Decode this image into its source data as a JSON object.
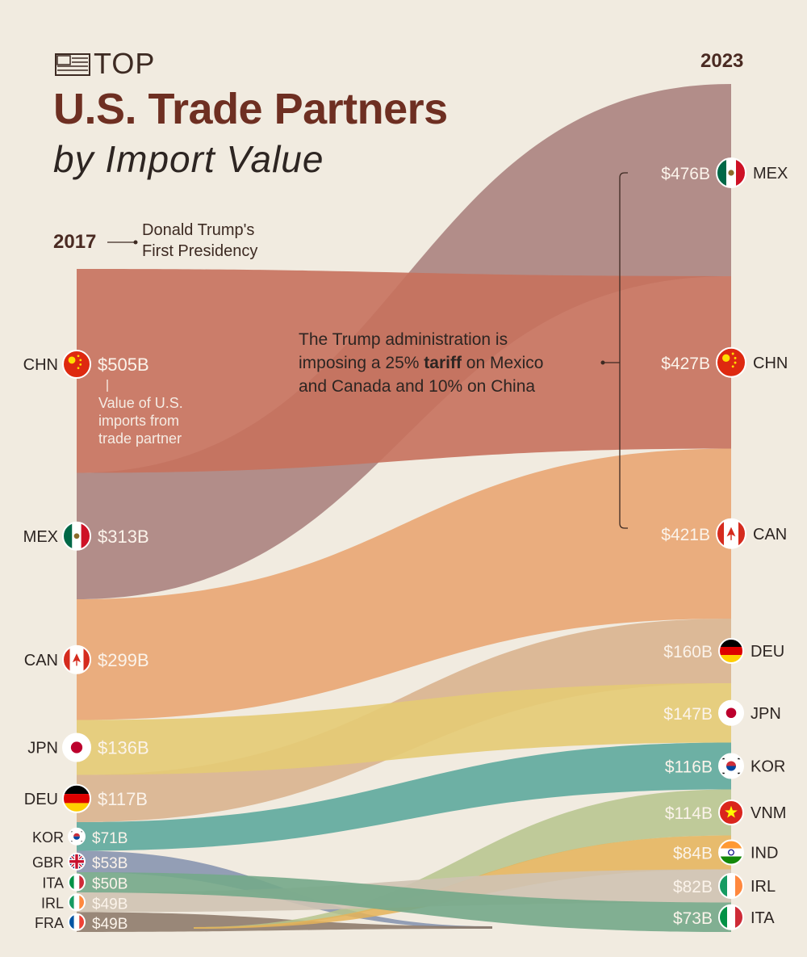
{
  "header": {
    "top_word": "TOP",
    "title": "U.S. Trade Partners",
    "subtitle": "by Import Value"
  },
  "annotations": {
    "year_start": "2017",
    "year_end": "2023",
    "presidency_line1": "Donald Trump's",
    "presidency_line2": "First Presidency",
    "tariff_line1": "The Trump administration is",
    "tariff_line2_pre": "imposing a 25% ",
    "tariff_line2_bold": "tariff",
    "tariff_line2_post": " on Mexico",
    "tariff_line3": "and Canada and 10% on China",
    "value_note_line1": "Value of U.S.",
    "value_note_line2": "imports from",
    "value_note_line3": "trade partner"
  },
  "colors": {
    "background": "#f1ebe0",
    "CHN": "#c7715d",
    "MEX": "#ab8380",
    "CAN": "#e9a673",
    "JPN": "#e4cb74",
    "DEU": "#d9b48f",
    "KOR": "#5eaa9d",
    "GBR": "#8391ad",
    "ITA": "#74a98a",
    "IRL": "#cfc3b3",
    "FRA": "#8a7565",
    "VNM": "#b6c48c",
    "IND": "#e5b358"
  },
  "chart_data": {
    "type": "sankey",
    "title": "U.S. Trade Partners by Import Value",
    "unit": "$B",
    "left_year": "2017",
    "right_year": "2023",
    "left": [
      {
        "code": "CHN",
        "value": 505,
        "label": "$505B",
        "flag": "china-flag-icon"
      },
      {
        "code": "MEX",
        "value": 313,
        "label": "$313B",
        "flag": "mexico-flag-icon"
      },
      {
        "code": "CAN",
        "value": 299,
        "label": "$299B",
        "flag": "canada-flag-icon"
      },
      {
        "code": "JPN",
        "value": 136,
        "label": "$136B",
        "flag": "japan-flag-icon"
      },
      {
        "code": "DEU",
        "value": 117,
        "label": "$117B",
        "flag": "germany-flag-icon"
      },
      {
        "code": "KOR",
        "value": 71,
        "label": "$71B",
        "flag": "korea-flag-icon"
      },
      {
        "code": "GBR",
        "value": 53,
        "label": "$53B",
        "flag": "uk-flag-icon"
      },
      {
        "code": "ITA",
        "value": 50,
        "label": "$50B",
        "flag": "italy-flag-icon"
      },
      {
        "code": "IRL",
        "value": 49,
        "label": "$49B",
        "flag": "ireland-flag-icon"
      },
      {
        "code": "FRA",
        "value": 49,
        "label": "$49B",
        "flag": "france-flag-icon"
      }
    ],
    "right": [
      {
        "code": "MEX",
        "value": 476,
        "label": "$476B",
        "flag": "mexico-flag-icon"
      },
      {
        "code": "CHN",
        "value": 427,
        "label": "$427B",
        "flag": "china-flag-icon"
      },
      {
        "code": "CAN",
        "value": 421,
        "label": "$421B",
        "flag": "canada-flag-icon"
      },
      {
        "code": "DEU",
        "value": 160,
        "label": "$160B",
        "flag": "germany-flag-icon"
      },
      {
        "code": "JPN",
        "value": 147,
        "label": "$147B",
        "flag": "japan-flag-icon"
      },
      {
        "code": "KOR",
        "value": 116,
        "label": "$116B",
        "flag": "korea-flag-icon"
      },
      {
        "code": "VNM",
        "value": 114,
        "label": "$114B",
        "flag": "vietnam-flag-icon"
      },
      {
        "code": "IND",
        "value": 84,
        "label": "$84B",
        "flag": "india-flag-icon"
      },
      {
        "code": "IRL",
        "value": 82,
        "label": "$82B",
        "flag": "ireland-flag-icon"
      },
      {
        "code": "ITA",
        "value": 73,
        "label": "$73B",
        "flag": "italy-flag-icon"
      }
    ],
    "flows": [
      "CHN",
      "MEX",
      "CAN",
      "JPN",
      "DEU",
      "KOR",
      "ITA",
      "IRL"
    ],
    "exits_left": [
      "GBR",
      "FRA"
    ],
    "entries_right": [
      "VNM",
      "IND"
    ]
  }
}
